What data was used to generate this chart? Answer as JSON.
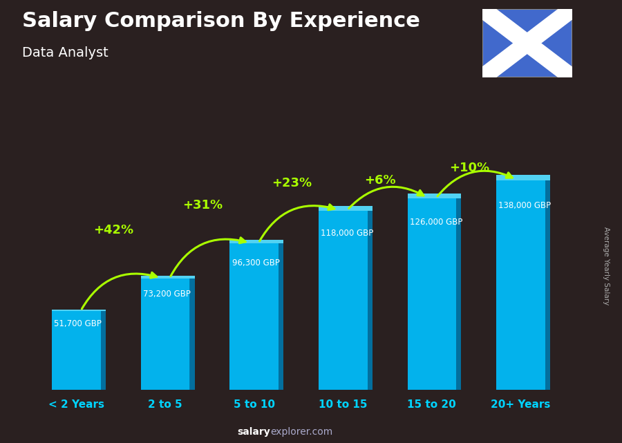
{
  "title": "Salary Comparison By Experience",
  "subtitle": "Data Analyst",
  "categories": [
    "< 2 Years",
    "2 to 5",
    "5 to 10",
    "10 to 15",
    "15 to 20",
    "20+ Years"
  ],
  "values": [
    51700,
    73200,
    96300,
    118000,
    126000,
    138000
  ],
  "labels": [
    "51,700 GBP",
    "73,200 GBP",
    "96,300 GBP",
    "118,000 GBP",
    "126,000 GBP",
    "138,000 GBP"
  ],
  "pct_changes": [
    null,
    "+42%",
    "+31%",
    "+23%",
    "+6%",
    "+10%"
  ],
  "bar_face_color": "#00bfff",
  "bar_side_color": "#0077aa",
  "bar_top_color": "#55ddff",
  "bg_color": "#2a2020",
  "title_color": "#ffffff",
  "subtitle_color": "#ffffff",
  "label_color": "#ffffff",
  "pct_color": "#aaff00",
  "xticklabel_color": "#00d4ff",
  "ylabel_text": "Average Yearly Salary",
  "watermark_bold": "salary",
  "watermark_rest": "explorer.com",
  "flag_bg": "#4169cc",
  "flag_cross": "#ffffff",
  "ylim": [
    0,
    175000
  ],
  "arc_rad": -0.4,
  "arc_offsets": [
    32000,
    25000,
    18000,
    12000,
    8000
  ]
}
